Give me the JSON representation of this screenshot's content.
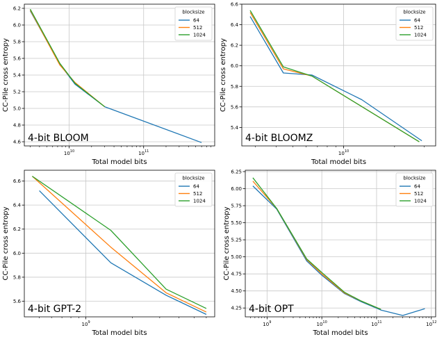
{
  "chart_data": [
    {
      "type": "line",
      "xscale": "log",
      "title": "",
      "annotation": "4-bit BLOOM",
      "xlabel": "Total model bits",
      "ylabel": "CC-Pile cross entropy",
      "xlim": [
        2500000000,
        900000000000
      ],
      "ylim": [
        4.55,
        6.25
      ],
      "yticks": [
        "4.6",
        "4.8",
        "5.0",
        "5.2",
        "5.4",
        "5.6",
        "5.8",
        "6.0",
        "6.2"
      ],
      "xticks": [
        {
          "value": 10000000000,
          "base": "10",
          "exp": "10"
        },
        {
          "value": 100000000000,
          "base": "10",
          "exp": "11"
        }
      ],
      "legend": {
        "title": "blocksize",
        "position": "top-right"
      },
      "series": [
        {
          "name": "64",
          "color": "#1f77b4",
          "x": [
            3000000000,
            7500000000,
            12000000000,
            30000000000,
            600000000000
          ],
          "y": [
            6.17,
            5.53,
            5.29,
            5.02,
            4.59
          ]
        },
        {
          "name": "512",
          "color": "#ff7f0e",
          "x": [
            3000000000,
            7500000000,
            12000000000,
            30000000000
          ],
          "y": [
            6.18,
            5.52,
            5.31,
            5.02
          ]
        },
        {
          "name": "1024",
          "color": "#2ca02c",
          "x": [
            3000000000,
            7500000000,
            12000000000,
            30000000000
          ],
          "y": [
            6.19,
            5.54,
            5.3,
            5.02
          ]
        }
      ]
    },
    {
      "type": "line",
      "xscale": "log",
      "title": "",
      "annotation": "4-bit BLOOMZ",
      "xlabel": "Total model bits",
      "ylabel": "CC-Pile cross entropy",
      "xlim": [
        2500000000,
        35000000000
      ],
      "ylim": [
        5.22,
        6.6
      ],
      "yticks": [
        "5.4",
        "5.6",
        "5.8",
        "6.0",
        "6.2",
        "6.4",
        "6.6"
      ],
      "xticks": [
        {
          "value": 10000000000,
          "base": "10",
          "exp": "10"
        }
      ],
      "legend": {
        "title": "blocksize",
        "position": "top-right"
      },
      "series": [
        {
          "name": "64",
          "color": "#1f77b4",
          "x": [
            2800000000,
            4400000000,
            6500000000,
            12800000000,
            29000000000
          ],
          "y": [
            6.48,
            5.93,
            5.91,
            5.67,
            5.27
          ]
        },
        {
          "name": "512",
          "color": "#ff7f0e",
          "x": [
            2800000000,
            4400000000,
            6500000000,
            28000000000
          ],
          "y": [
            6.52,
            5.97,
            5.9,
            5.26
          ]
        },
        {
          "name": "1024",
          "color": "#2ca02c",
          "x": [
            2800000000,
            4400000000,
            6500000000,
            28000000000
          ],
          "y": [
            6.54,
            5.99,
            5.9,
            5.26
          ]
        }
      ]
    },
    {
      "type": "line",
      "xscale": "log",
      "title": "",
      "annotation": "4-bit GPT-2",
      "xlabel": "Total model bits",
      "ylabel": "CC-Pile cross entropy",
      "xlim": [
        400000000,
        6800000000
      ],
      "ylim": [
        5.47,
        6.69
      ],
      "yticks": [
        "5.6",
        "5.8",
        "6.0",
        "6.2",
        "6.4",
        "6.6"
      ],
      "xticks": [
        {
          "value": 1000000000,
          "base": "10",
          "exp": "9"
        }
      ],
      "legend": {
        "title": "blocksize",
        "position": "top-right"
      },
      "series": [
        {
          "name": "64",
          "color": "#1f77b4",
          "x": [
            500000000,
            1450000000,
            3300000000,
            6000000000
          ],
          "y": [
            6.52,
            5.92,
            5.65,
            5.49
          ]
        },
        {
          "name": "512",
          "color": "#ff7f0e",
          "x": [
            450000000,
            1450000000,
            3300000000,
            6000000000
          ],
          "y": [
            6.64,
            6.05,
            5.67,
            5.51
          ]
        },
        {
          "name": "1024",
          "color": "#2ca02c",
          "x": [
            450000000,
            1450000000,
            3300000000,
            6000000000
          ],
          "y": [
            6.64,
            6.19,
            5.7,
            5.54
          ]
        }
      ]
    },
    {
      "type": "line",
      "xscale": "log",
      "title": "",
      "annotation": "4-bit OPT",
      "xlabel": "Total model bits",
      "ylabel": "CC-Pile cross entropy",
      "xlim": [
        400000000,
        1200000000000
      ],
      "ylim": [
        4.12,
        6.27
      ],
      "yticks": [
        "4.25",
        "4.50",
        "4.75",
        "5.00",
        "5.25",
        "5.50",
        "5.75",
        "6.00",
        "6.25"
      ],
      "xticks": [
        {
          "value": 1000000000,
          "base": "10",
          "exp": "9"
        },
        {
          "value": 10000000000,
          "base": "10",
          "exp": "10"
        },
        {
          "value": 100000000000,
          "base": "10",
          "exp": "11"
        },
        {
          "value": 1000000000000,
          "base": "10",
          "exp": "12"
        }
      ],
      "legend": {
        "title": "blocksize",
        "position": "top-right"
      },
      "series": [
        {
          "name": "64",
          "color": "#1f77b4",
          "x": [
            550000000,
            1500000000,
            5300000000,
            10000000000,
            26000000000,
            53000000000,
            120000000000,
            300000000000,
            760000000000
          ],
          "y": [
            6.04,
            5.7,
            4.94,
            4.73,
            4.46,
            4.34,
            4.22,
            4.14,
            4.24
          ]
        },
        {
          "name": "512",
          "color": "#ff7f0e",
          "x": [
            550000000,
            1500000000,
            5300000000,
            10000000000,
            26000000000,
            53000000000,
            120000000000
          ],
          "y": [
            6.11,
            5.71,
            4.96,
            4.75,
            4.47,
            4.35,
            4.23
          ]
        },
        {
          "name": "1024",
          "color": "#2ca02c",
          "x": [
            550000000,
            1500000000,
            5300000000,
            10000000000,
            26000000000,
            53000000000,
            120000000000
          ],
          "y": [
            6.16,
            5.71,
            4.97,
            4.77,
            4.48,
            4.35,
            4.23
          ]
        }
      ]
    }
  ]
}
